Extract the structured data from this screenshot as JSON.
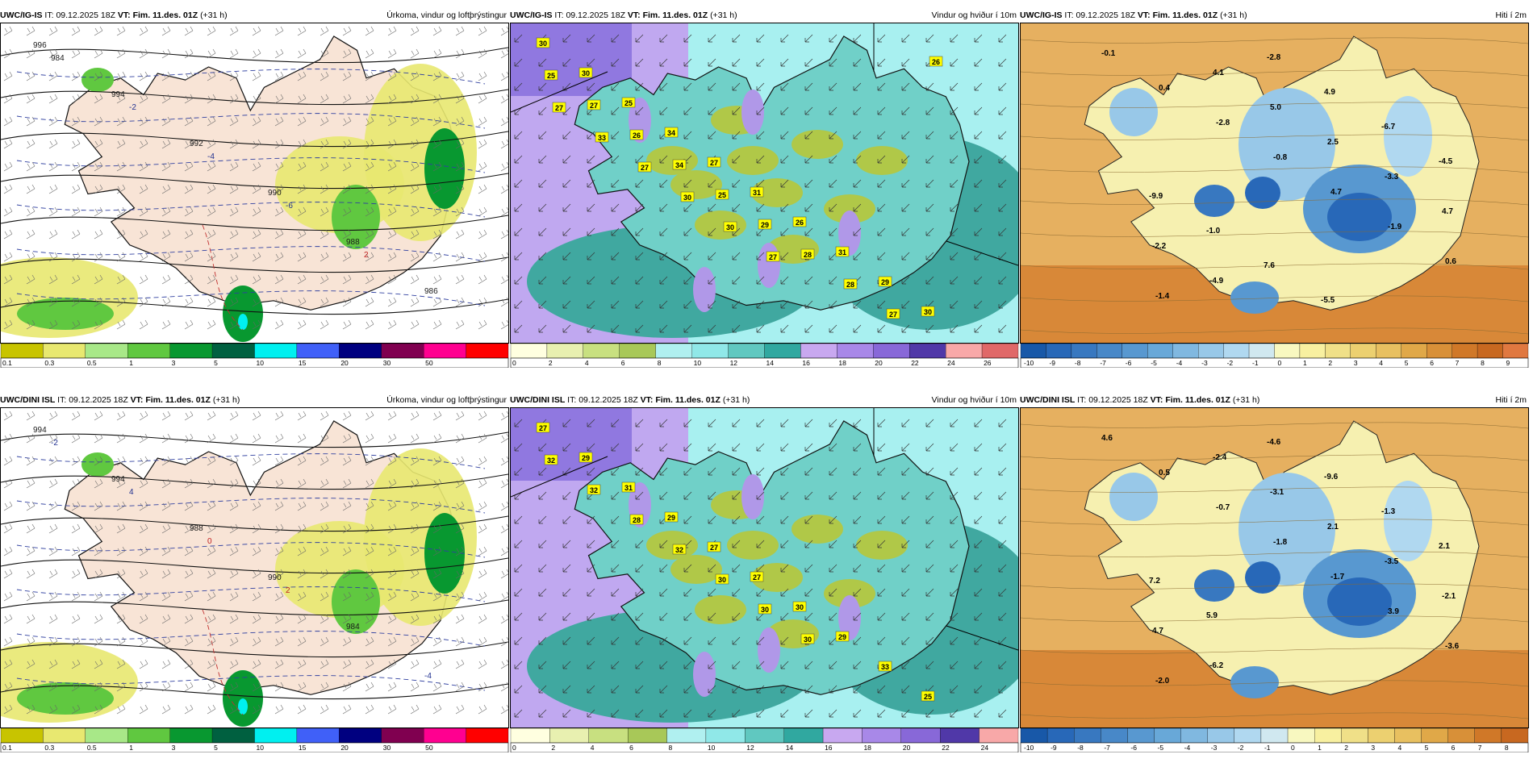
{
  "panels": [
    {
      "id": "p1",
      "model": "UWC/IG-IS",
      "it_label": "IT:",
      "it": "09.12.2025 18Z",
      "vt_label": "VT: Fim. 11.des. 01Z",
      "offset": "(+31 h)",
      "title": "Úrkoma, vindur og loftþrýstingur",
      "kind": "precip",
      "colorbar": {
        "labels": [
          "0.1",
          "0.3",
          "0.5",
          "1",
          "3",
          "5",
          "10",
          "15",
          "20",
          "30",
          "50"
        ],
        "colors": [
          "#c8c400",
          "#e8e870",
          "#a8e888",
          "#60c840",
          "#089830",
          "#006040",
          "#00f0f0",
          "#4060f8",
          "#000080",
          "#800050",
          "#ff0090",
          "#ff0000"
        ]
      },
      "annotations": [
        {
          "t": "996",
          "c": "#1a1a1a"
        },
        {
          "t": "994",
          "c": "#1a1a1a"
        },
        {
          "t": "992",
          "c": "#1a1a1a"
        },
        {
          "t": "990",
          "c": "#1a1a1a"
        },
        {
          "t": "988",
          "c": "#1a1a1a"
        },
        {
          "t": "986",
          "c": "#1a1a1a"
        },
        {
          "t": "984",
          "c": "#1a1a1a"
        },
        {
          "t": "-2",
          "c": "#203090"
        },
        {
          "t": "-4",
          "c": "#203090"
        },
        {
          "t": "-6",
          "c": "#203090"
        },
        {
          "t": "2",
          "c": "#c02020"
        }
      ]
    },
    {
      "id": "p2",
      "model": "UWC/IG-IS",
      "it_label": "IT:",
      "it": "09.12.2025 18Z",
      "vt_label": "VT: Fim. 11.des. 01Z",
      "offset": "(+31 h)",
      "title": "Vindur og hviður í 10m",
      "kind": "wind",
      "colorbar": {
        "labels": [
          "0",
          "2",
          "4",
          "6",
          "8",
          "10",
          "12",
          "14",
          "16",
          "18",
          "20",
          "22",
          "24",
          "26"
        ],
        "colors": [
          "#ffffe0",
          "#e8f0b0",
          "#c8e080",
          "#a8c858",
          "#b0f0f0",
          "#90e8e8",
          "#60c8c0",
          "#30a8a0",
          "#c8a8f0",
          "#a888e8",
          "#8868d8",
          "#5038a8",
          "#f8a8a8",
          "#e06868"
        ]
      },
      "gust_labels": [
        "30",
        "30",
        "25",
        "34",
        "27",
        "31",
        "26",
        "31",
        "29",
        "30",
        "25",
        "27",
        "26",
        "34",
        "25",
        "29",
        "28",
        "28",
        "27",
        "26",
        "27",
        "33",
        "27",
        "30",
        "30",
        "27"
      ]
    },
    {
      "id": "p3",
      "model": "UWC/IG-IS",
      "it_label": "IT:",
      "it": "09.12.2025 18Z",
      "vt_label": "VT: Fim. 11.des. 01Z",
      "offset": "(+31 h)",
      "title": "Hiti í 2m",
      "kind": "temp",
      "colorbar": {
        "labels": [
          "-10",
          "-9",
          "-8",
          "-7",
          "-6",
          "-5",
          "-4",
          "-3",
          "-2",
          "-1",
          "0",
          "1",
          "2",
          "3",
          "4",
          "5",
          "6",
          "7",
          "8",
          "9"
        ],
        "colors": [
          "#1858a8",
          "#2868b8",
          "#3878c0",
          "#4888c8",
          "#5898d0",
          "#68a8d8",
          "#80b8e0",
          "#98c8e8",
          "#b0d8f0",
          "#d0e8f0",
          "#f8f8c0",
          "#f8f0a0",
          "#f0e088",
          "#ecd070",
          "#e8c060",
          "#e0a848",
          "#d89038",
          "#d07828",
          "#c86820",
          "#e07840"
        ]
      },
      "temps": [
        "-0.1",
        "0.4",
        "-2.8",
        "-0.8",
        "4.7",
        "-1.9",
        "0.6",
        "-1.4",
        "4.1",
        "5.0",
        "2.5",
        "-3.3",
        "4.7",
        "-2.2",
        "-4.9",
        "-2.8",
        "4.9",
        "-6.7",
        "-4.5",
        "-9.9",
        "-1.0",
        "7.6",
        "-5.5"
      ]
    },
    {
      "id": "p4",
      "model": "UWC/DINI ISL",
      "it_label": "IT:",
      "it": "09.12.2025 18Z",
      "vt_label": "VT: Fim. 11.des. 01Z",
      "offset": "(+31 h)",
      "title": "Úrkoma, vindur og loftþrýstingur",
      "kind": "precip",
      "colorbar": {
        "labels": [
          "0.1",
          "0.3",
          "0.5",
          "1",
          "3",
          "5",
          "10",
          "15",
          "20",
          "30",
          "50"
        ],
        "colors": [
          "#c8c400",
          "#e8e870",
          "#a8e888",
          "#60c840",
          "#089830",
          "#006040",
          "#00f0f0",
          "#4060f8",
          "#000080",
          "#800050",
          "#ff0090",
          "#ff0000"
        ]
      },
      "annotations": [
        {
          "t": "994",
          "c": "#1a1a1a"
        },
        {
          "t": "994",
          "c": "#1a1a1a"
        },
        {
          "t": "988",
          "c": "#1a1a1a"
        },
        {
          "t": "990",
          "c": "#1a1a1a"
        },
        {
          "t": "984",
          "c": "#1a1a1a"
        },
        {
          "t": "-4",
          "c": "#203090"
        },
        {
          "t": "-2",
          "c": "#203090"
        },
        {
          "t": "4",
          "c": "#203090"
        },
        {
          "t": "0",
          "c": "#c02020"
        },
        {
          "t": "2",
          "c": "#c02020"
        }
      ]
    },
    {
      "id": "p5",
      "model": "UWC/DINI ISL",
      "it_label": "IT:",
      "it": "09.12.2025 18Z",
      "vt_label": "VT: Fim. 11.des. 01Z",
      "offset": "(+31 h)",
      "title": "Vindur og hviður í 10m",
      "kind": "wind",
      "colorbar": {
        "labels": [
          "0",
          "2",
          "4",
          "6",
          "8",
          "10",
          "12",
          "14",
          "16",
          "18",
          "20",
          "22",
          "24"
        ],
        "colors": [
          "#ffffe0",
          "#e8f0b0",
          "#c8e080",
          "#a8c858",
          "#b0f0f0",
          "#90e8e8",
          "#60c8c0",
          "#30a8a0",
          "#c8a8f0",
          "#a888e8",
          "#8868d8",
          "#5038a8",
          "#f8a8a8"
        ]
      },
      "gust_labels": [
        "27",
        "29",
        "31",
        "29",
        "27",
        "27",
        "30",
        "29",
        "33",
        "25",
        "32",
        "32",
        "28",
        "32",
        "30",
        "30",
        "30"
      ]
    },
    {
      "id": "p6",
      "model": "UWC/DINI ISL",
      "it_label": "IT:",
      "it": "09.12.2025 18Z",
      "vt_label": "VT: Fim. 11.des. 01Z",
      "offset": "(+31 h)",
      "title": "Hiti í 2m",
      "kind": "temp",
      "colorbar": {
        "labels": [
          "-10",
          "-9",
          "-8",
          "-7",
          "-6",
          "-5",
          "-4",
          "-3",
          "-2",
          "-1",
          "0",
          "1",
          "2",
          "3",
          "4",
          "5",
          "6",
          "7",
          "8"
        ],
        "colors": [
          "#1858a8",
          "#2868b8",
          "#3878c0",
          "#4888c8",
          "#5898d0",
          "#68a8d8",
          "#80b8e0",
          "#98c8e8",
          "#b0d8f0",
          "#d0e8f0",
          "#f8f8c0",
          "#f8f0a0",
          "#f0e088",
          "#ecd070",
          "#e8c060",
          "#e0a848",
          "#d89038",
          "#d07828",
          "#c86820"
        ]
      },
      "temps": [
        "4.6",
        "0.5",
        "-0.7",
        "-1.8",
        "-1.7",
        "3.9",
        "-3.6",
        "-2.0",
        "-2.4",
        "-3.1",
        "2.1",
        "-3.5",
        "-2.1",
        "4.7",
        "-6.2",
        "-4.6",
        "-9.6",
        "-1.3",
        "2.1",
        "7.2",
        "5.9"
      ]
    }
  ]
}
